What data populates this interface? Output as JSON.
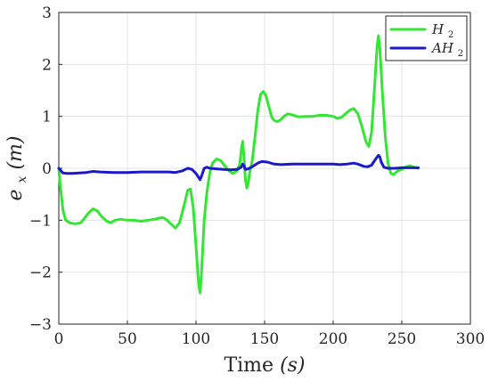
{
  "chart_data": {
    "type": "line",
    "xlabel_parts": {
      "text": "Time ",
      "var": "(s)"
    },
    "ylabel_parts": {
      "base": "e",
      "sub": "x",
      "unit": " (m)"
    },
    "xlim": [
      0,
      300
    ],
    "ylim": [
      -3,
      3
    ],
    "xticks": [
      0,
      50,
      100,
      150,
      200,
      250,
      300
    ],
    "yticks": [
      -3,
      -2,
      -1,
      0,
      1,
      2,
      3
    ],
    "xtick_labels": [
      "0",
      "50",
      "100",
      "150",
      "200",
      "250",
      "300"
    ],
    "ytick_labels": [
      "−3",
      "−2",
      "−1",
      "0",
      "1",
      "2",
      "3"
    ],
    "grid": true,
    "legend_position": "top-right",
    "series": [
      {
        "name": "H",
        "name_sub": "2",
        "color": "#33e633",
        "x": [
          0,
          1,
          3,
          5,
          8,
          12,
          16,
          19,
          22,
          25,
          28,
          31,
          35,
          38,
          41,
          45,
          50,
          55,
          60,
          65,
          70,
          73,
          76,
          79,
          82,
          85,
          88,
          91,
          94,
          96,
          98,
          100,
          102,
          103,
          104,
          106,
          108,
          110,
          112,
          115,
          118,
          121,
          124,
          127,
          130,
          132,
          133,
          134,
          135,
          136,
          137,
          138,
          139,
          141,
          143,
          145,
          147,
          149,
          151,
          153,
          155,
          157,
          159,
          161,
          164,
          167,
          170,
          175,
          180,
          185,
          190,
          195,
          200,
          203,
          206,
          209,
          212,
          215,
          218,
          221,
          224,
          226,
          228,
          230,
          232,
          233,
          234,
          236,
          238,
          240,
          242,
          244,
          247,
          250,
          253,
          256,
          259,
          262
        ],
        "y": [
          0,
          -0.3,
          -0.8,
          -1.0,
          -1.05,
          -1.07,
          -1.05,
          -0.95,
          -0.85,
          -0.78,
          -0.82,
          -0.92,
          -1.02,
          -1.05,
          -1.0,
          -0.98,
          -1.0,
          -1.0,
          -1.02,
          -1.0,
          -0.98,
          -0.96,
          -0.95,
          -1.0,
          -1.08,
          -1.15,
          -1.05,
          -0.75,
          -0.42,
          -0.4,
          -0.75,
          -1.5,
          -2.25,
          -2.4,
          -2.0,
          -1.0,
          -0.45,
          -0.1,
          0.1,
          0.18,
          0.15,
          0.05,
          -0.05,
          -0.1,
          -0.05,
          0.1,
          0.35,
          0.52,
          0.2,
          -0.2,
          -0.38,
          -0.3,
          -0.1,
          0.15,
          0.6,
          1.1,
          1.42,
          1.48,
          1.4,
          1.2,
          1.0,
          0.92,
          0.9,
          0.92,
          1.0,
          1.05,
          1.03,
          0.99,
          1.0,
          1.0,
          1.02,
          1.02,
          1.0,
          0.96,
          0.98,
          1.05,
          1.12,
          1.15,
          1.05,
          0.8,
          0.5,
          0.42,
          0.7,
          1.5,
          2.35,
          2.55,
          2.3,
          1.4,
          0.6,
          0.1,
          -0.1,
          -0.12,
          -0.05,
          -0.02,
          0.03,
          0.05,
          0.02,
          0.0
        ]
      },
      {
        "name": "AH",
        "name_sub": "2",
        "color": "#1a1acc",
        "x": [
          0,
          1,
          3,
          6,
          10,
          15,
          20,
          25,
          30,
          40,
          50,
          60,
          70,
          80,
          85,
          90,
          94,
          97,
          100,
          102,
          103,
          104,
          106,
          108,
          110,
          115,
          120,
          125,
          130,
          133,
          134,
          135,
          136,
          138,
          141,
          145,
          148,
          152,
          157,
          162,
          170,
          180,
          190,
          200,
          205,
          210,
          215,
          218,
          222,
          225,
          228,
          231,
          233,
          234,
          235,
          237,
          240,
          245,
          250,
          255,
          262
        ],
        "y": [
          0,
          -0.03,
          -0.09,
          -0.1,
          -0.1,
          -0.09,
          -0.08,
          -0.06,
          -0.07,
          -0.08,
          -0.08,
          -0.07,
          -0.07,
          -0.07,
          -0.08,
          -0.05,
          0.0,
          -0.02,
          -0.1,
          -0.18,
          -0.22,
          -0.15,
          0.0,
          0.02,
          0.0,
          -0.01,
          -0.02,
          -0.03,
          -0.02,
          0.02,
          0.08,
          0.05,
          -0.02,
          -0.01,
          0.03,
          0.1,
          0.13,
          0.12,
          0.08,
          0.07,
          0.08,
          0.08,
          0.08,
          0.08,
          0.07,
          0.08,
          0.1,
          0.08,
          0.04,
          0.03,
          0.06,
          0.18,
          0.25,
          0.22,
          0.12,
          0.02,
          0.0,
          0.0,
          0.01,
          0.01,
          0.01
        ]
      }
    ]
  }
}
